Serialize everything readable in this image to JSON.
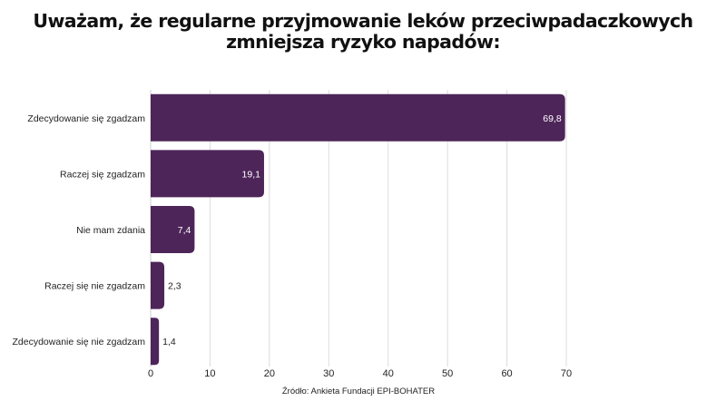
{
  "chart_data": {
    "type": "bar",
    "orientation": "horizontal",
    "title_lines": [
      "Uważam, że regularne przyjmowanie leków przeciwpadaczkowych",
      "zmniejsza ryzyko napadów:"
    ],
    "categories": [
      "Zdecydowanie się zgadzam",
      "Raczej się zgadzam",
      "Nie mam zdania",
      "Raczej się nie zgadzam",
      "Zdecydowanie się nie zgadzam"
    ],
    "values": [
      69.8,
      19.1,
      7.4,
      2.3,
      1.4
    ],
    "data_labels": [
      "69,8",
      "19,1",
      "7,4",
      "2,3",
      "1,4"
    ],
    "xlim": [
      0,
      70
    ],
    "xticks": [
      0,
      10,
      20,
      30,
      40,
      50,
      60,
      70
    ],
    "grid": "vertical",
    "bar_color": "#4d2559",
    "source": "Źródło: Ankieta Fundacji EPI-BOHATER"
  }
}
